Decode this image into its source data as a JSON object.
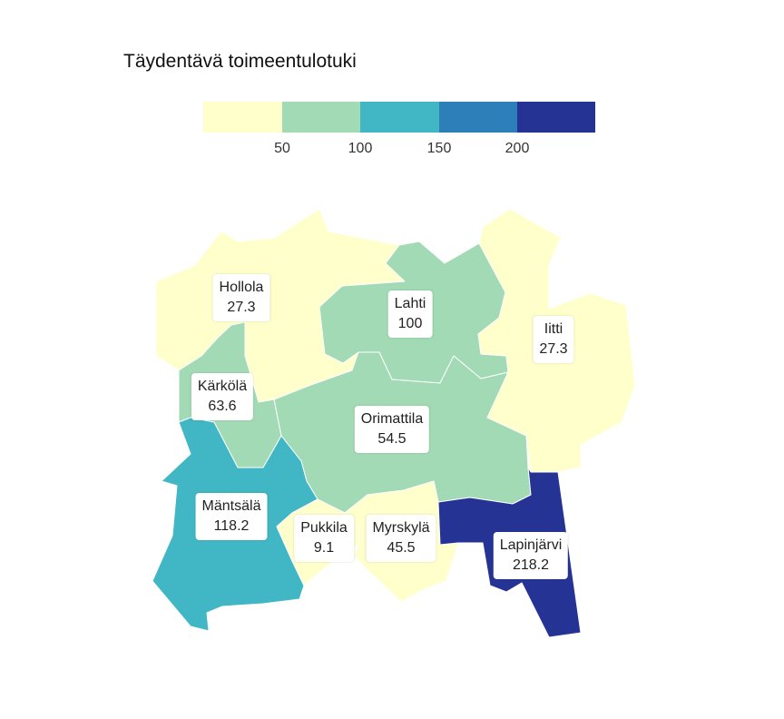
{
  "title": "Täydentävä toimeentulotuki",
  "legend": {
    "colors": [
      "#ffffcc",
      "#a1dab4",
      "#41b6c4",
      "#2c7fb8",
      "#253494"
    ],
    "breaks": [
      "50",
      "100",
      "150",
      "200"
    ]
  },
  "regions": [
    {
      "id": "hollola",
      "name": "Hollola",
      "value": "27.3",
      "color": "#ffffcc"
    },
    {
      "id": "lahti",
      "name": "Lahti",
      "value": "100",
      "color": "#a1dab4"
    },
    {
      "id": "iitti",
      "name": "Iitti",
      "value": "27.3",
      "color": "#ffffcc"
    },
    {
      "id": "karkola",
      "name": "Kärkölä",
      "value": "63.6",
      "color": "#a1dab4"
    },
    {
      "id": "orimattila",
      "name": "Orimattila",
      "value": "54.5",
      "color": "#a1dab4"
    },
    {
      "id": "mantsala",
      "name": "Mäntsälä",
      "value": "118.2",
      "color": "#41b6c4"
    },
    {
      "id": "pukkila",
      "name": "Pukkila",
      "value": "9.1",
      "color": "#ffffcc"
    },
    {
      "id": "myrskyla",
      "name": "Myrskylä",
      "value": "45.5",
      "color": "#ffffcc"
    },
    {
      "id": "lapinjarvi",
      "name": "Lapinjärvi",
      "value": "218.2",
      "color": "#253494"
    }
  ]
}
